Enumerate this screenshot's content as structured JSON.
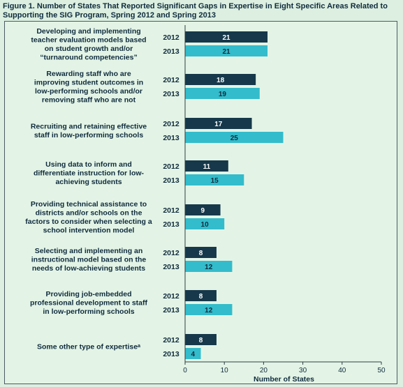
{
  "chart_data": {
    "type": "bar",
    "title": "Figure 1. Number of States That Reported Significant Gaps in Expertise in Eight Specific Areas Related to Supporting the SIG Program, Spring 2012 and Spring 2013",
    "xlabel": "Number of States",
    "ylabel": "",
    "xlim": [
      0,
      50
    ],
    "xticks": [
      0,
      10,
      20,
      30,
      40,
      50
    ],
    "grid": false,
    "categories": [
      [
        "Developing and implementing",
        "teacher evaluation models based",
        "on student growth and/or",
        "“turnaround competencies”"
      ],
      [
        "Rewarding staff who are",
        "improving student outcomes in",
        "low-performing schools and/or",
        "removing staff who are not"
      ],
      [
        "Recruiting and retaining effective",
        "staff in low-performing schools"
      ],
      [
        "Using data to inform and",
        "differentiate instruction for low-",
        "achieving students"
      ],
      [
        "Providing technical assistance to",
        "districts and/or schools on the",
        "factors to consider when selecting a",
        "school intervention model"
      ],
      [
        "Selecting and implementing an",
        "instructional model based on the",
        "needs of low-achieving students"
      ],
      [
        "Providing job-embedded",
        "professional development to staff",
        "in low-performing schools"
      ],
      [
        "Some other type of expertiseᵃ"
      ]
    ],
    "series": [
      {
        "name": "2012",
        "color": "#16384a",
        "label_color": "#ffffff",
        "values": [
          21,
          18,
          17,
          11,
          9,
          8,
          8,
          8
        ]
      },
      {
        "name": "2013",
        "color": "#33bccb",
        "label_color": "#0f2b3d",
        "values": [
          21,
          19,
          25,
          15,
          10,
          12,
          12,
          4
        ]
      }
    ]
  }
}
